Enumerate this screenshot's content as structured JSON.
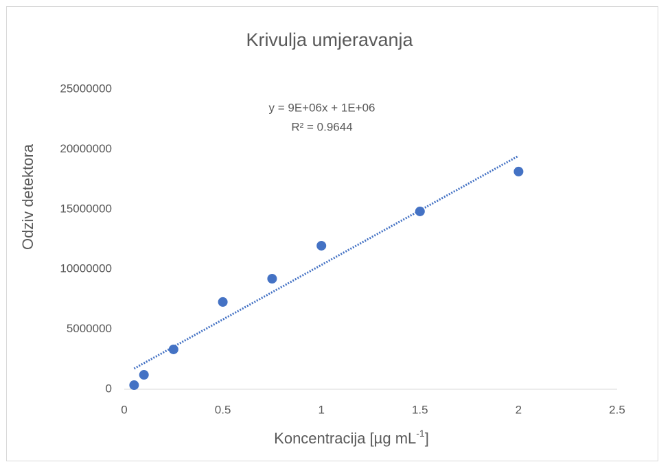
{
  "chart_data": {
    "type": "scatter",
    "title": "Krivulja umjeravanja",
    "x_label": {
      "text": "Koncentracija [µg mL",
      "sup": "-1",
      "end": "]"
    },
    "y_label": "Odziv detektora",
    "x": [
      0.05,
      0.1,
      0.25,
      0.5,
      0.75,
      1,
      1.5,
      2
    ],
    "series": [
      {
        "name": "Odziv detektora",
        "color": "#4472c4",
        "values": [
          340000,
          1200000,
          3320000,
          7270000,
          9210000,
          11960000,
          14820000,
          18140000
        ]
      }
    ],
    "trendline": {
      "x": [
        0.05,
        2
      ],
      "values": [
        1720000,
        19450000
      ],
      "color": "#4472c4",
      "equation": "y = 9E+06x + 1E+06",
      "r2": "R² = 0.9644"
    },
    "xlim": [
      0,
      2.5
    ],
    "xticks": [
      0,
      0.5,
      1,
      1.5,
      2,
      2.5
    ],
    "ylim": [
      0,
      25000000
    ],
    "yticks": [
      0,
      5000000,
      10000000,
      15000000,
      20000000,
      25000000
    ],
    "grid": false
  }
}
